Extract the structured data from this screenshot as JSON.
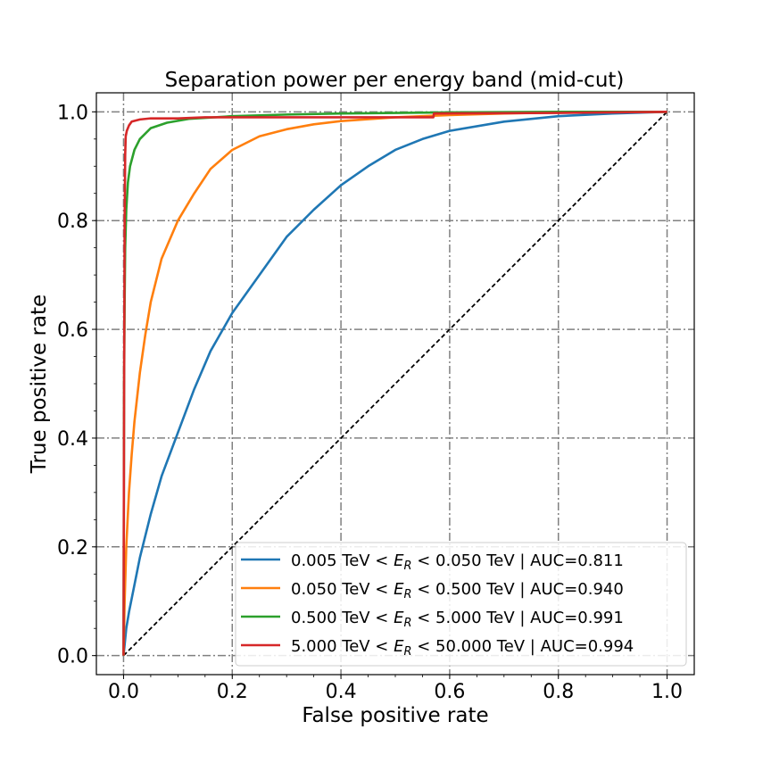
{
  "chart_data": {
    "type": "line",
    "title": "Separation power per energy band (mid-cut)",
    "xlabel": "False positive rate",
    "ylabel": "True positive rate",
    "xlim": [
      -0.05,
      1.05
    ],
    "ylim": [
      -0.035,
      1.035
    ],
    "xticks": [
      0.0,
      0.2,
      0.4,
      0.6,
      0.8,
      1.0
    ],
    "xtick_labels": [
      "0.0",
      "0.2",
      "0.4",
      "0.6",
      "0.8",
      "1.0"
    ],
    "yticks": [
      0.0,
      0.2,
      0.4,
      0.6,
      0.8,
      1.0
    ],
    "ytick_labels": [
      "0.0",
      "0.2",
      "0.4",
      "0.6",
      "0.8",
      "1.0"
    ],
    "grid": true,
    "legend_position": "lower-right",
    "diagonal": {
      "x": [
        0,
        1
      ],
      "y": [
        0,
        1
      ],
      "color": "#000000",
      "style": "dashed"
    },
    "series": [
      {
        "legend_parts": [
          "0.005 TeV < ",
          "E",
          "R",
          " < 0.050 TeV | AUC=0.811"
        ],
        "color": "#1f77b4",
        "x": [
          0,
          0.005,
          0.01,
          0.02,
          0.03,
          0.05,
          0.07,
          0.1,
          0.13,
          0.16,
          0.2,
          0.25,
          0.3,
          0.35,
          0.4,
          0.45,
          0.5,
          0.55,
          0.6,
          0.7,
          0.8,
          0.9,
          1.0
        ],
        "y": [
          0,
          0.05,
          0.08,
          0.13,
          0.18,
          0.26,
          0.33,
          0.41,
          0.49,
          0.56,
          0.63,
          0.7,
          0.77,
          0.82,
          0.865,
          0.9,
          0.93,
          0.95,
          0.965,
          0.982,
          0.992,
          0.997,
          1.0
        ]
      },
      {
        "legend_parts": [
          "0.050 TeV < ",
          "E",
          "R",
          " < 0.500 TeV | AUC=0.940"
        ],
        "color": "#ff7f0e",
        "x": [
          0,
          0.002,
          0.005,
          0.01,
          0.015,
          0.02,
          0.03,
          0.04,
          0.05,
          0.07,
          0.1,
          0.13,
          0.16,
          0.2,
          0.25,
          0.3,
          0.35,
          0.4,
          0.5,
          0.6,
          0.7,
          0.8,
          1.0
        ],
        "y": [
          0,
          0.1,
          0.2,
          0.3,
          0.37,
          0.43,
          0.52,
          0.59,
          0.65,
          0.73,
          0.8,
          0.85,
          0.895,
          0.93,
          0.955,
          0.968,
          0.977,
          0.983,
          0.99,
          0.994,
          0.997,
          0.999,
          1.0
        ]
      },
      {
        "legend_parts": [
          "0.500 TeV < ",
          "E",
          "R",
          " < 5.000 TeV | AUC=0.991"
        ],
        "color": "#2ca02c",
        "x": [
          0,
          0.001,
          0.002,
          0.003,
          0.005,
          0.008,
          0.012,
          0.02,
          0.03,
          0.05,
          0.08,
          0.12,
          0.2,
          0.3,
          0.4,
          0.6,
          0.8,
          1.0
        ],
        "y": [
          0,
          0.5,
          0.65,
          0.75,
          0.82,
          0.87,
          0.9,
          0.93,
          0.95,
          0.97,
          0.98,
          0.987,
          0.992,
          0.995,
          0.997,
          0.999,
          1.0,
          1.0
        ]
      },
      {
        "legend_parts": [
          "5.000 TeV < ",
          "E",
          "R",
          " < 50.000 TeV | AUC=0.994"
        ],
        "color": "#d62728",
        "x": [
          0,
          0.001,
          0.002,
          0.003,
          0.004,
          0.006,
          0.01,
          0.015,
          0.03,
          0.05,
          0.1,
          0.15,
          0.3,
          0.301,
          0.57,
          0.571,
          0.8,
          1.0
        ],
        "y": [
          0,
          0.5,
          0.8,
          0.92,
          0.955,
          0.965,
          0.975,
          0.982,
          0.986,
          0.988,
          0.988,
          0.99,
          0.99,
          0.99,
          0.99,
          0.997,
          0.998,
          1.0
        ]
      }
    ]
  }
}
